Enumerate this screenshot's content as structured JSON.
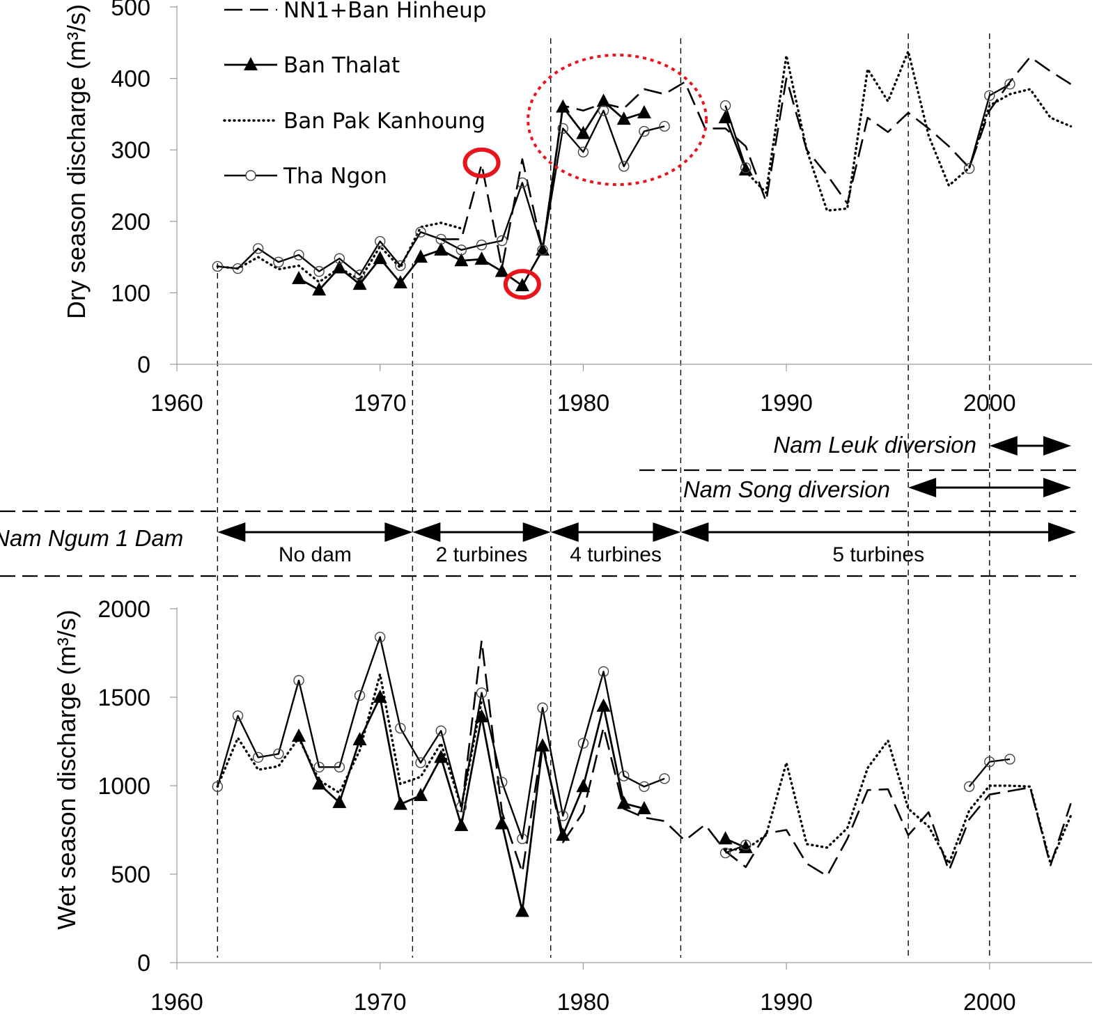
{
  "chart_data": [
    {
      "type": "line",
      "title": "",
      "xlabel": "",
      "ylabel": "Dry season discharge (m³/s)",
      "xlim": [
        1960,
        2004.5
      ],
      "ylim": [
        0,
        500
      ],
      "xticks": [
        "1960",
        "1970",
        "1980",
        "1990",
        "2000"
      ],
      "yticks": [
        "0",
        "100",
        "200",
        "300",
        "400",
        "500"
      ],
      "legend": "top-left",
      "x": [
        1962,
        1963,
        1964,
        1965,
        1966,
        1967,
        1968,
        1969,
        1970,
        1971,
        1972,
        1973,
        1974,
        1975,
        1976,
        1977,
        1978,
        1979,
        1980,
        1981,
        1982,
        1983,
        1984,
        1985,
        1986,
        1987,
        1988,
        1989,
        1990,
        1991,
        1992,
        1993,
        1994,
        1995,
        1996,
        1997,
        1998,
        1999,
        2000,
        2001,
        2002,
        2003,
        2004
      ],
      "series": [
        {
          "name": "NN1+Ban Hinheup",
          "style": "dashed",
          "values": [
            null,
            null,
            null,
            null,
            null,
            null,
            null,
            null,
            null,
            null,
            null,
            175,
            175,
            280,
            135,
            287,
            160,
            362,
            355,
            365,
            358,
            385,
            378,
            395,
            330,
            330,
            305,
            228,
            400,
            300,
            265,
            225,
            345,
            325,
            352,
            330,
            305,
            275,
            355,
            395,
            430,
            410,
            392
          ]
        },
        {
          "name": "Ban Thalat",
          "style": "solid-triangle",
          "values": [
            null,
            null,
            null,
            null,
            120,
            104,
            135,
            112,
            148,
            114,
            150,
            160,
            145,
            147,
            130,
            110,
            160,
            360,
            323,
            368,
            343,
            352,
            null,
            null,
            null,
            345,
            272,
            null,
            null,
            null,
            null,
            null,
            null,
            null,
            null,
            null,
            null,
            null,
            null,
            null,
            null,
            null,
            null
          ]
        },
        {
          "name": "Ban Pak Kanhoung",
          "style": "dotted",
          "values": [
            137,
            134,
            150,
            133,
            138,
            115,
            135,
            118,
            165,
            135,
            192,
            198,
            190,
            null,
            null,
            null,
            null,
            null,
            null,
            null,
            null,
            null,
            null,
            null,
            null,
            null,
            270,
            240,
            432,
            300,
            215,
            218,
            413,
            368,
            438,
            320,
            250,
            275,
            362,
            378,
            385,
            345,
            333
          ]
        },
        {
          "name": "Tha Ngon",
          "style": "solid-circle",
          "values": [
            137,
            134,
            162,
            143,
            153,
            130,
            148,
            125,
            172,
            138,
            185,
            175,
            160,
            167,
            173,
            254,
            160,
            330,
            297,
            355,
            277,
            326,
            333,
            null,
            null,
            362,
            275,
            null,
            null,
            null,
            null,
            null,
            null,
            null,
            null,
            null,
            null,
            274,
            376,
            392,
            null,
            null,
            null
          ]
        }
      ],
      "annotations": {
        "highlighted_points": [
          [
            1975,
            280
          ],
          [
            1977,
            110
          ]
        ],
        "highlighted_region": [
          1979,
          1984
        ]
      }
    },
    {
      "type": "line",
      "title": "",
      "xlabel": "",
      "ylabel": "Wet season discharge (m³/s)",
      "xlim": [
        1960,
        2004.5
      ],
      "ylim": [
        0,
        2000
      ],
      "xticks": [
        "1960",
        "1970",
        "1980",
        "1990",
        "2000"
      ],
      "yticks": [
        "0",
        "500",
        "1000",
        "1500",
        "2000"
      ],
      "x": [
        1962,
        1963,
        1964,
        1965,
        1966,
        1967,
        1968,
        1969,
        1970,
        1971,
        1972,
        1973,
        1974,
        1975,
        1976,
        1977,
        1978,
        1979,
        1980,
        1981,
        1982,
        1983,
        1984,
        1985,
        1986,
        1987,
        1988,
        1989,
        1990,
        1991,
        1992,
        1993,
        1994,
        1995,
        1996,
        1997,
        1998,
        1999,
        2000,
        2001,
        2002,
        2003,
        2004
      ],
      "series": [
        {
          "name": "NN1+Ban Hinheup",
          "style": "dashed",
          "values": [
            null,
            null,
            null,
            null,
            null,
            null,
            null,
            null,
            null,
            null,
            null,
            null,
            850,
            1820,
            850,
            510,
            1250,
            680,
            850,
            1330,
            870,
            820,
            800,
            690,
            780,
            630,
            540,
            730,
            750,
            560,
            490,
            700,
            975,
            980,
            720,
            850,
            520,
            810,
            950,
            970,
            990,
            550,
            900
          ]
        },
        {
          "name": "Ban Thalat",
          "style": "solid-triangle",
          "values": [
            null,
            null,
            null,
            null,
            1280,
            1010,
            905,
            1260,
            1500,
            895,
            945,
            1160,
            775,
            1390,
            785,
            290,
            1225,
            720,
            995,
            1450,
            900,
            870,
            null,
            null,
            null,
            700,
            650,
            null,
            null,
            null,
            null,
            null,
            null,
            null,
            null,
            null,
            null,
            null,
            null,
            null,
            null,
            null,
            null
          ]
        },
        {
          "name": "Ban Pak Kanhoung",
          "style": "dotted",
          "values": [
            995,
            1270,
            1090,
            1110,
            1270,
            1030,
            960,
            1200,
            1630,
            1010,
            1050,
            1240,
            880,
            1480,
            null,
            null,
            null,
            null,
            null,
            null,
            null,
            null,
            null,
            null,
            null,
            640,
            640,
            720,
            1130,
            670,
            650,
            760,
            1100,
            1255,
            870,
            770,
            560,
            860,
            1000,
            1000,
            995,
            560,
            830
          ]
        },
        {
          "name": "Tha Ngon",
          "style": "solid-circle",
          "values": [
            995,
            1395,
            1160,
            1180,
            1595,
            1105,
            1105,
            1510,
            1840,
            1325,
            1130,
            1310,
            880,
            1525,
            1020,
            700,
            1440,
            830,
            1240,
            1645,
            1055,
            995,
            1040,
            null,
            null,
            620,
            665,
            null,
            null,
            null,
            null,
            null,
            null,
            null,
            null,
            null,
            null,
            995,
            1135,
            1150,
            null,
            null,
            null
          ]
        }
      ]
    }
  ],
  "periods": {
    "nam_leuk": {
      "label": "Nam Leuk diversion",
      "from": 2000,
      "to": 2004.5
    },
    "nam_song": {
      "label": "Nam Song diversion",
      "from": 1996,
      "to": 2004.5
    },
    "dam": {
      "label": "Nam Ngum 1 Dam",
      "phases": [
        {
          "label": "No dam",
          "from": 1962,
          "to": 1971.6
        },
        {
          "label": "2 turbines",
          "from": 1971.6,
          "to": 1978.4
        },
        {
          "label": "4 turbines",
          "from": 1978.4,
          "to": 1984.8
        },
        {
          "label": "5 turbines",
          "from": 1984.8,
          "to": 2004.5
        }
      ]
    },
    "boundaries": [
      1962,
      1971.6,
      1978.4,
      1984.8,
      1996,
      2000
    ]
  },
  "colors": {
    "highlight": "#e8141b",
    "line": "#000000"
  }
}
